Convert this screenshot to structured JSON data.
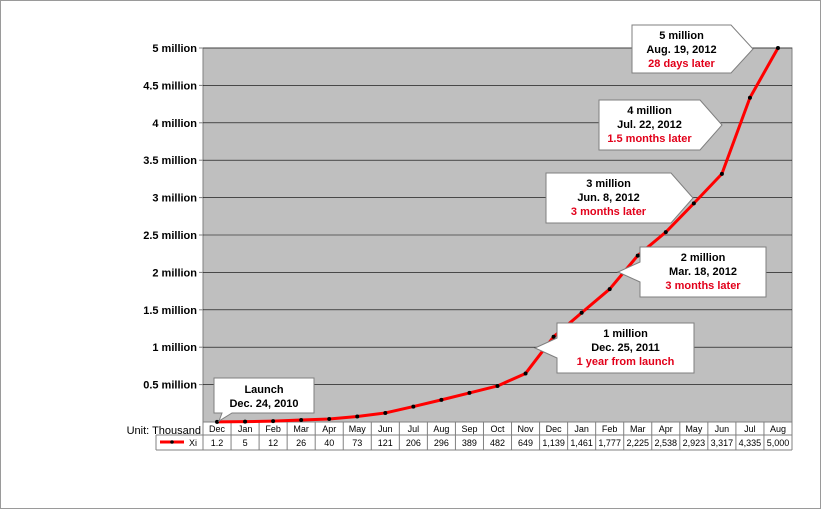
{
  "chart_data": {
    "type": "line",
    "unit_label": "Unit: Thousand",
    "categories": [
      "Dec",
      "Jan",
      "Feb",
      "Mar",
      "Apr",
      "May",
      "Jun",
      "Jul",
      "Aug",
      "Sep",
      "Oct",
      "Nov",
      "Dec",
      "Jan",
      "Feb",
      "Mar",
      "Apr",
      "May",
      "Jun",
      "Jul",
      "Aug"
    ],
    "series": [
      {
        "name": "Xi",
        "values": [
          1.2,
          5,
          12,
          26,
          40,
          73,
          121,
          206,
          296,
          389,
          482,
          649,
          1139,
          1461,
          1777,
          2225,
          2538,
          2923,
          3317,
          4335,
          5000
        ],
        "value_labels": [
          "1.2",
          "5",
          "12",
          "26",
          "40",
          "73",
          "121",
          "206",
          "296",
          "389",
          "482",
          "649",
          "1,139",
          "1,461",
          "1,777",
          "2,225",
          "2,538",
          "2,923",
          "3,317",
          "4,335",
          "5,000"
        ],
        "color": "#ff0000"
      }
    ],
    "y_axis": {
      "min": 0,
      "max": 5000,
      "step": 500,
      "tick_labels": [
        "0.5 million",
        "1 million",
        "1.5 million",
        "2 million",
        "2.5 million",
        "3 million",
        "3.5 million",
        "4 million",
        "4.5 million",
        "5 million"
      ]
    },
    "grid": true,
    "plot_background": "#bfbfbf",
    "legend": "data-table-left",
    "annotations": [
      {
        "index": 0,
        "title": "Launch",
        "date": "Dec. 24, 2010",
        "note": ""
      },
      {
        "index": 12,
        "title": "1 million",
        "date": "Dec. 25, 2011",
        "note": "1 year from launch"
      },
      {
        "index": 15,
        "title": "2 million",
        "date": "Mar. 18, 2012",
        "note": "3 months later"
      },
      {
        "index": 18,
        "title": "3 million",
        "date": "Jun. 8, 2012",
        "note": "3 months later"
      },
      {
        "index": 19,
        "title": "4 million",
        "date": "Jul. 22, 2012",
        "note": "1.5 months later"
      },
      {
        "index": 20,
        "title": "5 million",
        "date": "Aug. 19, 2012",
        "note": "28 days later"
      }
    ],
    "note_color": "#e2001a"
  }
}
